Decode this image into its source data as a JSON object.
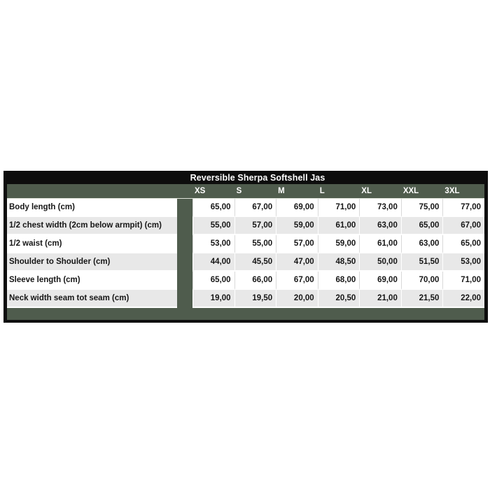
{
  "theme": {
    "page-bg": "#FFFFFF",
    "olive": "#4F5C4D",
    "frame-black": "#0D0D0D",
    "row-white": "#FFFFFF",
    "row-alt": "#E8E8E8",
    "text-light": "#FFFFFF",
    "text-dark": "#161616"
  },
  "chart_data": {
    "type": "table",
    "title": "Reversible Sherpa Softshell Jas",
    "size_columns": [
      "XS",
      "S",
      "M",
      "L",
      "XL",
      "XXL",
      "3XL"
    ],
    "measurement_rows": [
      {
        "label": "Body length (cm)",
        "values": [
          "65,00",
          "67,00",
          "69,00",
          "71,00",
          "73,00",
          "75,00",
          "77,00"
        ]
      },
      {
        "label": "1/2 chest width (2cm below armpit) (cm)",
        "values": [
          "55,00",
          "57,00",
          "59,00",
          "61,00",
          "63,00",
          "65,00",
          "67,00"
        ]
      },
      {
        "label": "1/2 waist (cm)",
        "values": [
          "53,00",
          "55,00",
          "57,00",
          "59,00",
          "61,00",
          "63,00",
          "65,00"
        ]
      },
      {
        "label": "Shoulder to Shoulder (cm)",
        "values": [
          "44,00",
          "45,50",
          "47,00",
          "48,50",
          "50,00",
          "51,50",
          "53,00"
        ]
      },
      {
        "label": "Sleeve length (cm)",
        "values": [
          "65,00",
          "66,00",
          "67,00",
          "68,00",
          "69,00",
          "70,00",
          "71,00"
        ]
      },
      {
        "label": "Neck width seam tot seam (cm)",
        "values": [
          "19,00",
          "19,50",
          "20,00",
          "20,50",
          "21,00",
          "21,50",
          "22,00"
        ]
      }
    ],
    "layout_hints": {
      "value_alignment": "right",
      "decimal_separator": "comma",
      "row_striping": "white / light-gray alternating",
      "frame": "black outer border with olive-green inner frame and header row"
    }
  }
}
